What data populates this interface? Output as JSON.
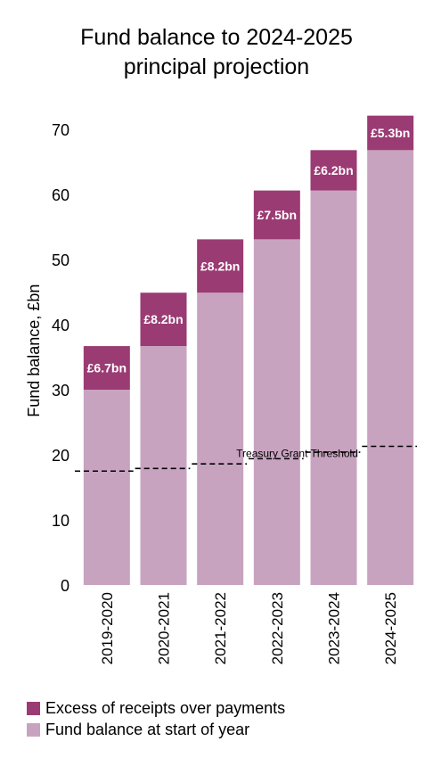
{
  "colors": {
    "excess": "#9b3b73",
    "balance": "#c8a3c0",
    "threshold": "#000000",
    "data_label": "#ffffff"
  },
  "chart_data": {
    "type": "bar",
    "stacked": true,
    "title": [
      "Fund balance to 2024-2025",
      "principal projection"
    ],
    "ylabel": "Fund balance, £bn",
    "xlabel": "",
    "categories": [
      "2019-2020",
      "2020-2021",
      "2021-2022",
      "2022-2023",
      "2023-2024",
      "2024-2025"
    ],
    "ylim": [
      0,
      72
    ],
    "yticks": [
      0,
      10,
      20,
      30,
      40,
      50,
      60,
      70
    ],
    "grid": false,
    "legend_position": "bottom-left",
    "series": [
      {
        "name": "Fund balance at start of year",
        "color": "#c8a3c0",
        "values": [
          30.0,
          36.7,
          44.9,
          53.1,
          60.6,
          66.8
        ]
      },
      {
        "name": "Excess of receipts over payments",
        "color": "#9b3b73",
        "values": [
          6.7,
          8.2,
          8.2,
          7.5,
          6.2,
          5.3
        ],
        "labels": [
          "£6.7bn",
          "£8.2bn",
          "£8.2bn",
          "£7.5bn",
          "£6.2bn",
          "£5.3bn"
        ]
      }
    ],
    "threshold": {
      "name": "Treasury Grant Threshold",
      "style": "dashed",
      "values": [
        17.5,
        17.9,
        18.6,
        19.4,
        20.4,
        21.3
      ]
    }
  },
  "legend": {
    "items": [
      {
        "label": "Excess of receipts over payments",
        "color": "#9b3b73"
      },
      {
        "label": "Fund balance at start of year",
        "color": "#c8a3c0"
      }
    ]
  }
}
